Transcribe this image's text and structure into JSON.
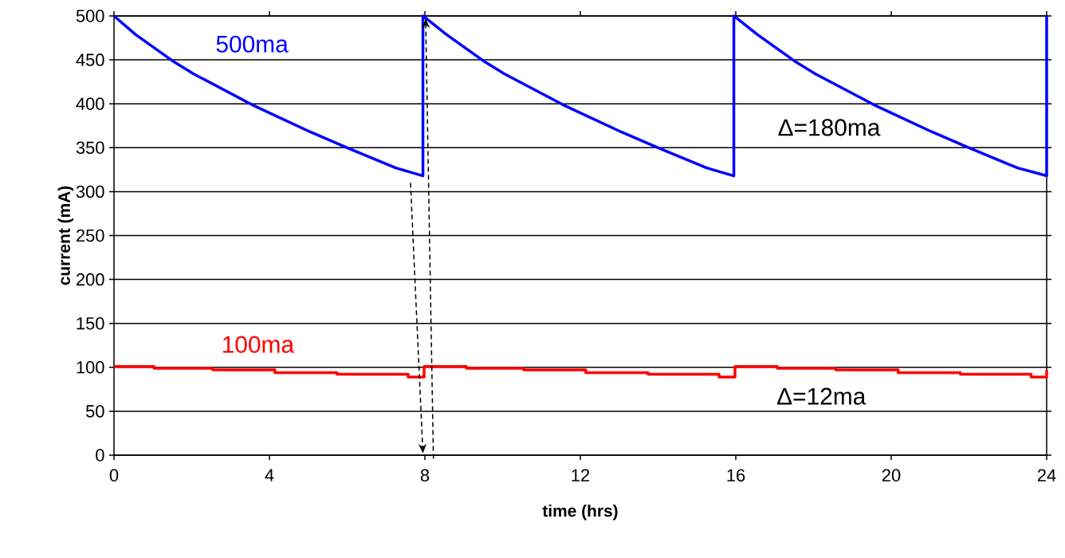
{
  "chart_data": {
    "type": "line",
    "xlabel": "time (hrs)",
    "ylabel": "current (mA)",
    "xlim": [
      0,
      24
    ],
    "xticks": [
      0,
      4,
      8,
      12,
      16,
      20,
      24
    ],
    "ylim": [
      0,
      500
    ],
    "yticks": [
      0,
      50,
      100,
      150,
      200,
      250,
      300,
      350,
      400,
      450,
      500
    ],
    "grid": "y",
    "marker": "none",
    "line_style": "solid",
    "annotations": [
      "Δ=180ma",
      "Δ=12ma"
    ],
    "series": [
      {
        "name": "500ma",
        "color": "#0000ff",
        "x": [
          0,
          0.55,
          1.5,
          2.05,
          3.55,
          5.05,
          6,
          7.25,
          7.95,
          7.95,
          8.55,
          9.5,
          10.05,
          11.55,
          13.05,
          14,
          15.25,
          15.95,
          15.95,
          16.55,
          17.5,
          18.05,
          19.55,
          21.05,
          22,
          23.25,
          24,
          24
        ],
        "values": [
          500,
          479,
          449,
          434,
          399,
          368,
          350,
          327,
          318,
          500,
          479,
          449,
          434,
          399,
          368,
          350,
          327,
          318,
          500,
          479,
          449,
          434,
          399,
          368,
          350,
          327,
          318,
          500
        ]
      },
      {
        "name": "100ma",
        "color": "#ff0000",
        "type": "step",
        "x": [
          0,
          1.03,
          2.54,
          4.14,
          5.74,
          7.57,
          7.98,
          9.07,
          10.54,
          12.14,
          13.74,
          15.57,
          15.98,
          17.07,
          18.57,
          20.18,
          21.78,
          23.6,
          24
        ],
        "values": [
          101,
          99,
          97,
          94,
          92,
          89,
          101,
          99,
          97,
          94,
          92,
          89,
          101,
          99,
          97,
          94,
          92,
          89,
          97
        ]
      }
    ]
  }
}
